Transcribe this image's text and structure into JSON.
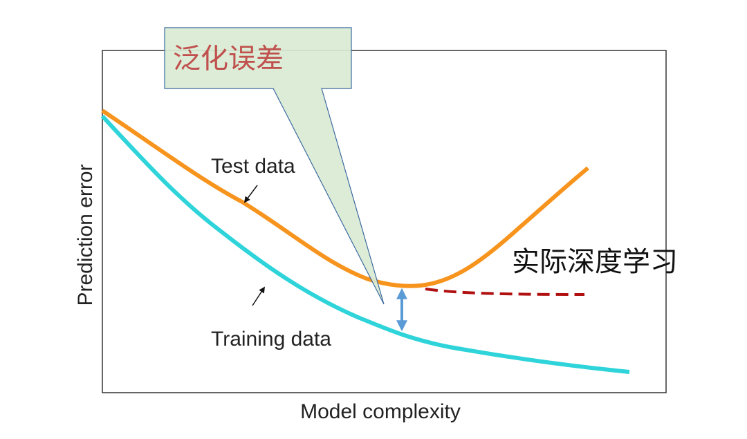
{
  "diagram": {
    "callout": "泛化误差",
    "y_axis_label": "Prediction error",
    "x_axis_label": "Model complexity",
    "curves": {
      "test": "Test data",
      "training": "Training data"
    },
    "annotation": "实际深度学习"
  }
}
